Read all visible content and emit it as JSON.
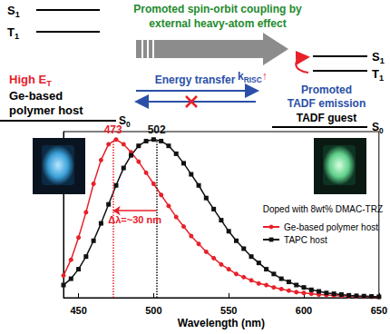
{
  "diagram": {
    "left_states": [
      {
        "main": "S",
        "sub": "1"
      },
      {
        "main": "T",
        "sub": "1"
      }
    ],
    "headline": [
      "Promoted spin-orbit coupling by",
      "external heavy-atom effect"
    ],
    "rate": {
      "main": "k",
      "sub": "RISC",
      "suffix": "↑"
    },
    "right_states": [
      {
        "main": "S",
        "sub": "1"
      },
      {
        "main": "T",
        "sub": "1"
      }
    ],
    "host": {
      "energy": {
        "main": "High E",
        "sub": "T"
      },
      "name": [
        "Ge-based",
        "polymer host"
      ],
      "ground": {
        "main": "S",
        "sub": "0"
      }
    },
    "transfer": "Energy transfer",
    "guest": {
      "effect": [
        "Promoted",
        "TADF emission"
      ],
      "name": "TADF guest",
      "ground": {
        "main": "S",
        "sub": "0"
      }
    }
  },
  "chart_data": {
    "type": "line",
    "x_label": "Wavelength (nm)",
    "x": [
      440,
      445,
      450,
      455,
      460,
      465,
      470,
      475,
      480,
      485,
      490,
      495,
      500,
      505,
      510,
      515,
      520,
      525,
      530,
      535,
      540,
      545,
      550,
      555,
      560,
      565,
      570,
      575,
      580,
      585,
      590,
      595,
      600,
      605,
      610,
      615,
      620,
      625,
      630,
      635,
      640,
      645,
      650
    ],
    "series": [
      {
        "name": "Ge-based polymer host",
        "color": "#e8202a",
        "marker": "circle",
        "values": [
          0.14,
          0.24,
          0.38,
          0.54,
          0.72,
          0.87,
          0.97,
          1.0,
          0.97,
          0.92,
          0.86,
          0.79,
          0.72,
          0.65,
          0.58,
          0.51,
          0.45,
          0.39,
          0.34,
          0.29,
          0.25,
          0.21,
          0.18,
          0.15,
          0.13,
          0.11,
          0.09,
          0.08,
          0.065,
          0.055,
          0.045,
          0.035,
          0.03,
          0.025,
          0.02,
          0.017,
          0.014,
          0.012,
          0.01,
          0.008,
          0.007,
          0.006,
          0.005
        ]
      },
      {
        "name": "TAPC host",
        "color": "#111111",
        "marker": "square",
        "values": [
          0.08,
          0.12,
          0.18,
          0.26,
          0.36,
          0.47,
          0.59,
          0.71,
          0.82,
          0.9,
          0.96,
          0.99,
          1.0,
          0.99,
          0.96,
          0.91,
          0.85,
          0.78,
          0.71,
          0.63,
          0.56,
          0.49,
          0.42,
          0.36,
          0.31,
          0.26,
          0.22,
          0.18,
          0.15,
          0.12,
          0.1,
          0.08,
          0.065,
          0.05,
          0.04,
          0.03,
          0.025,
          0.02,
          0.015,
          0.012,
          0.01,
          0.008,
          0.006
        ]
      }
    ],
    "xlim": [
      440,
      650
    ],
    "xticks": [
      450,
      500,
      550,
      600,
      650
    ],
    "ylim": [
      0,
      1.05
    ],
    "yticks": [],
    "tick_labels": "x",
    "grid": false,
    "legend": "right",
    "legend_title": "Doped with 8wt% DMAC-TRZ",
    "annotations": [
      {
        "text": "473",
        "x": 473,
        "color": "#e8202a"
      },
      {
        "text": "502",
        "x": 502,
        "color": "#111111"
      },
      {
        "text": "Δλ=~30 nm",
        "from": 502,
        "to": 473,
        "y": 0.55,
        "color": "#e8202a"
      }
    ]
  }
}
